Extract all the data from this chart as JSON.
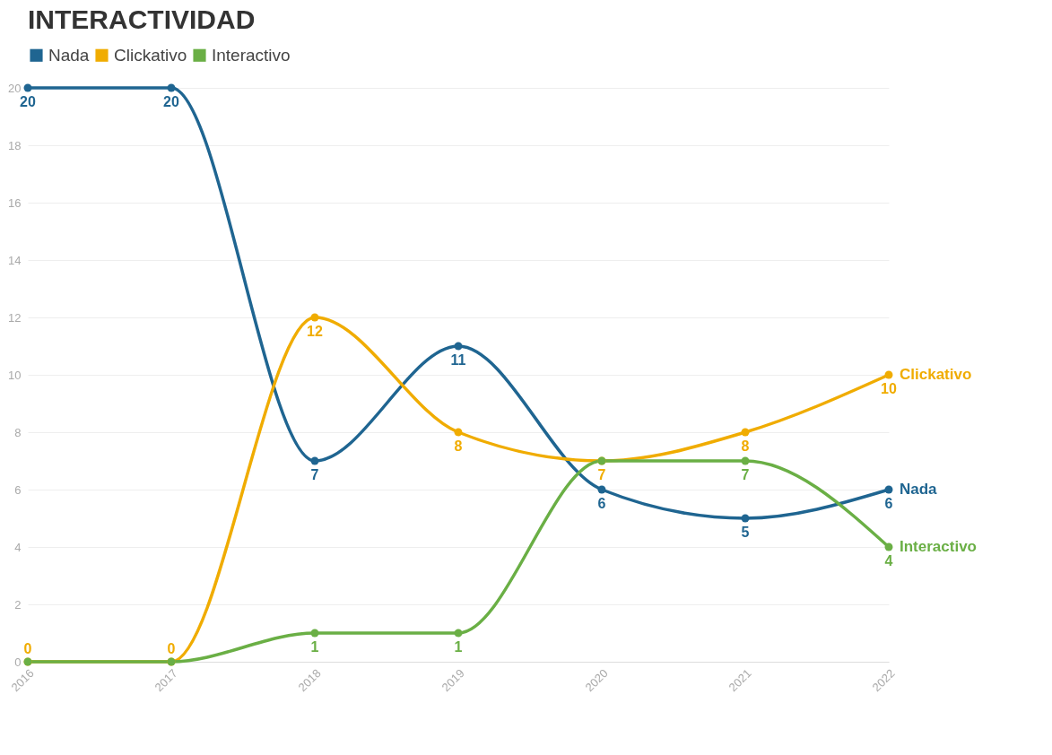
{
  "chart_data": {
    "type": "line",
    "title": "INTERACTIVIDAD",
    "categories": [
      "2016",
      "2017",
      "2018",
      "2019",
      "2020",
      "2021",
      "2022"
    ],
    "series": [
      {
        "name": "Nada",
        "color": "#1f6591",
        "values": [
          20,
          20,
          7,
          11,
          6,
          5,
          6
        ],
        "value_labels": [
          "20",
          "20",
          "7",
          "11",
          "6",
          "5",
          "6"
        ]
      },
      {
        "name": "Clickativo",
        "color": "#f0ac00",
        "values": [
          0,
          0,
          12,
          8,
          7,
          8,
          10
        ],
        "value_labels": [
          "0",
          "0",
          "12",
          "8",
          "7",
          "8",
          "10"
        ]
      },
      {
        "name": "Interactivo",
        "color": "#6aaf45",
        "values": [
          0,
          0,
          1,
          1,
          7,
          7,
          4
        ],
        "value_labels": [
          null,
          null,
          "1",
          "1",
          null,
          "7",
          "4"
        ]
      }
    ],
    "ylim": [
      0,
      20
    ],
    "yticks": [
      0,
      2,
      4,
      6,
      8,
      10,
      12,
      14,
      16,
      18,
      20
    ],
    "grid": "y",
    "legend": "top left",
    "marker": "circle"
  }
}
